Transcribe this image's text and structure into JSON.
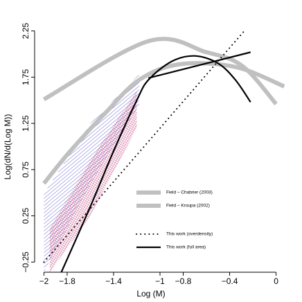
{
  "chart_data": {
    "type": "line",
    "x_label": "Log (M)",
    "y_label": "Log(dN/d(Log M))",
    "xlim": [
      -2.08,
      0.08
    ],
    "ylim": [
      -0.36,
      2.36
    ],
    "xticks": [
      {
        "value": -2,
        "label": "−2"
      },
      {
        "value": -1.8,
        "label": "−1.8"
      },
      {
        "value": -1.4,
        "label": "−1.4"
      },
      {
        "value": -1,
        "label": "−1"
      },
      {
        "value": -0.8,
        "label": "−0.8"
      },
      {
        "value": -0.4,
        "label": "−0.4"
      },
      0
    ],
    "yticks": [
      {
        "value": -0.25,
        "label": "−0.25"
      },
      0.25,
      0.75,
      1.25,
      1.75,
      2.25
    ],
    "legend": "center",
    "bands": [
      {
        "color": "#3030c0",
        "x": [
          -2,
          -1.6,
          -1.18
        ],
        "upper": [
          0.49,
          1.25,
          1.78
        ],
        "lower": [
          -0.36,
          0.6,
          1.45
        ]
      },
      {
        "color": "#d02020",
        "x": [
          -1.95,
          -1.6,
          -1.2
        ],
        "upper": [
          0.1,
          0.85,
          1.6
        ],
        "lower": [
          -0.36,
          0.25,
          1.2
        ]
      }
    ],
    "series": [
      {
        "name": "Field – Chabrier (2003)",
        "color": "#c0c0c0",
        "style": "thick",
        "x": [
          -2,
          -1.1,
          -0.6,
          -0.29,
          0
        ],
        "values": [
          1.51,
          2.14,
          2.02,
          1.87,
          1.46
        ]
      },
      {
        "name": "Field – Kroupa (2002)",
        "color": "#c0c0c0",
        "style": "thick",
        "x": [
          -2,
          -1.78,
          -1.48,
          -1.18,
          -0.83,
          -0.35,
          0.07
        ],
        "values": [
          0.6,
          0.94,
          1.35,
          1.72,
          1.89,
          1.86,
          1.65
        ]
      },
      {
        "name": "This work (overdensity)",
        "color": "#000000",
        "style": "dotted",
        "x": [
          -2,
          -0.26
        ],
        "values": [
          -0.25,
          2.27
        ]
      },
      {
        "name": "This work (full area)",
        "color": "#000000",
        "style": "solid",
        "x": [
          -1.85,
          -1.6,
          -1.4,
          -1.2,
          -1.1,
          -0.9,
          -0.7,
          -0.5,
          -0.35,
          -0.22
        ],
        "values": [
          -0.36,
          0.35,
          0.95,
          1.5,
          1.72,
          1.92,
          1.98,
          1.9,
          1.72,
          1.48
        ]
      },
      {
        "color": "#000000",
        "style": "solid",
        "x": [
          -1.1,
          -0.22
        ],
        "values": [
          1.74,
          2.02
        ]
      }
    ]
  }
}
